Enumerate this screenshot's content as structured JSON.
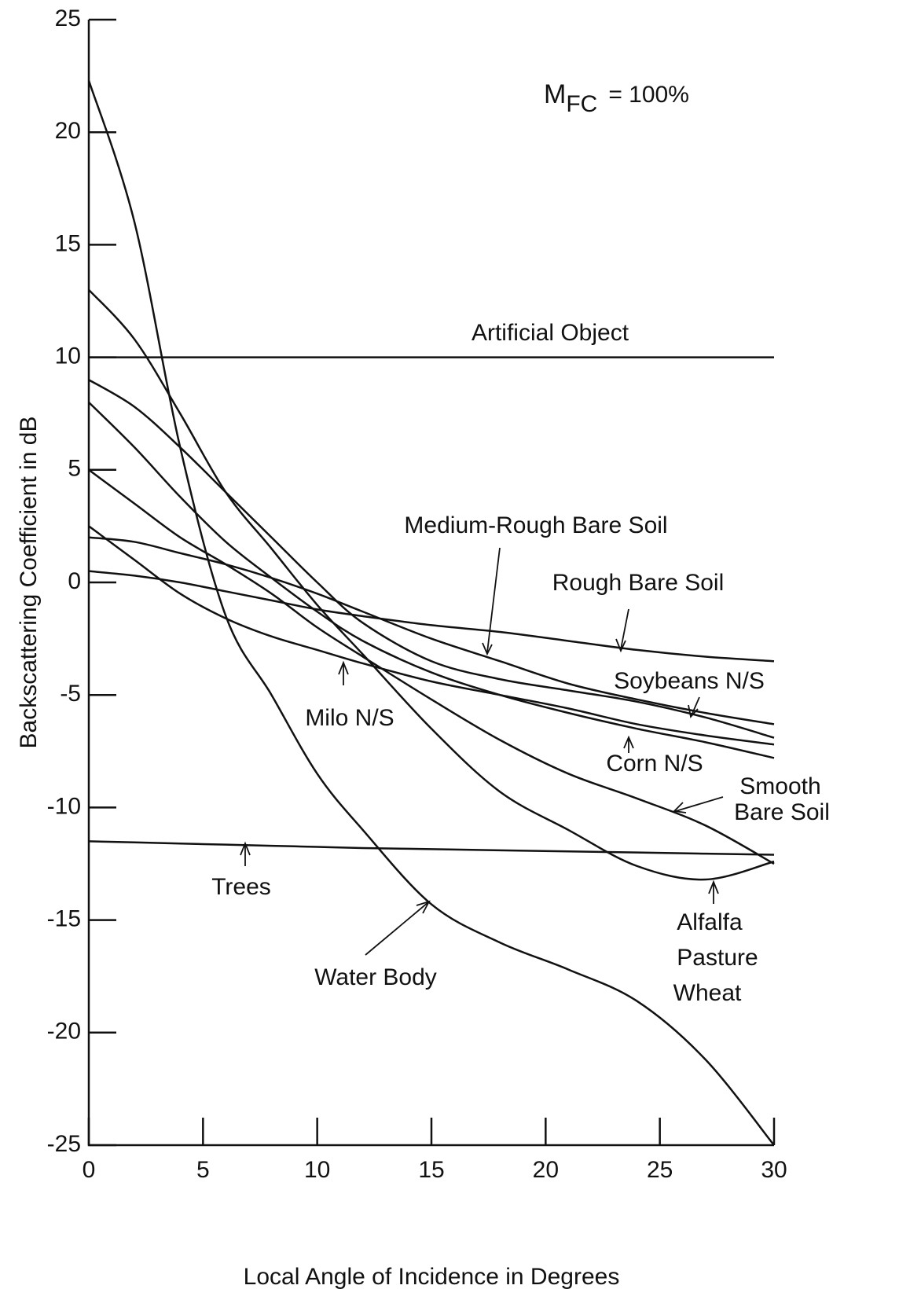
{
  "chart_data": {
    "type": "line",
    "x_label": "Local Angle of Incidence in Degrees",
    "y_label": "Backscattering Coefficient in dB",
    "header": {
      "symbol": "M",
      "subscript": "FC",
      "text": "= 100%"
    },
    "x": [
      0,
      2,
      4,
      6,
      8,
      10,
      12,
      15,
      18,
      21,
      24,
      27,
      30
    ],
    "series": [
      {
        "color": "#111111",
        "values": [
          10,
          10,
          10,
          10,
          10,
          10,
          10,
          10,
          10,
          10,
          10,
          10,
          10
        ]
      },
      {
        "color": "#111111",
        "values": [
          22.3,
          16,
          6,
          -1.5,
          -5,
          -8.5,
          -11,
          -14.3,
          -16,
          -17.2,
          -18.6,
          -21.2,
          -25
        ]
      },
      {
        "color": "#111111",
        "values": [
          13,
          10.8,
          7.5,
          4,
          1.5,
          -1,
          -3.2,
          -6.5,
          -9.3,
          -11,
          -12.6,
          -13.2,
          -12.4
        ]
      },
      {
        "color": "#111111",
        "values": [
          9,
          7.8,
          6,
          4,
          2,
          0,
          -1.8,
          -3.5,
          -4.3,
          -4.8,
          -5.3,
          -6,
          -6.9
        ]
      },
      {
        "color": "#111111",
        "values": [
          8,
          6,
          3.8,
          1.8,
          0.2,
          -1.3,
          -2.6,
          -4,
          -5,
          -5.8,
          -6.5,
          -7.1,
          -7.8
        ]
      },
      {
        "color": "#111111",
        "values": [
          5,
          3.5,
          2,
          0.8,
          -0.5,
          -2,
          -3.3,
          -5.2,
          -7,
          -8.5,
          -9.6,
          -10.8,
          -12.5
        ]
      },
      {
        "color": "#111111",
        "values": [
          2.5,
          1,
          -0.5,
          -1.6,
          -2.4,
          -3,
          -3.6,
          -4.4,
          -5,
          -5.6,
          -6.3,
          -6.8,
          -7.2
        ]
      },
      {
        "color": "#111111",
        "values": [
          2,
          1.8,
          1.3,
          0.8,
          0.2,
          -0.5,
          -1.3,
          -2.5,
          -3.5,
          -4.5,
          -5.2,
          -5.8,
          -6.3
        ]
      },
      {
        "color": "#111111",
        "values": [
          0.5,
          0.3,
          0,
          -0.4,
          -0.8,
          -1.2,
          -1.5,
          -1.9,
          -2.2,
          -2.6,
          -3,
          -3.3,
          -3.5
        ]
      },
      {
        "color": "#111111",
        "values": [
          -11.5,
          -11.55,
          -11.6,
          -11.65,
          -11.7,
          -11.75,
          -11.8,
          -11.85,
          -11.9,
          -11.95,
          -12,
          -12.05,
          -12.1
        ]
      }
    ],
    "annotations": [
      "Artificial Object",
      "Medium-Rough Bare Soil",
      "Rough Bare Soil",
      "Soybeans N/S",
      "Milo N/S",
      "Corn N/S",
      "Smooth",
      "Bare Soil",
      "Trees",
      "Alfalfa",
      "Pasture",
      "Wheat",
      "Water Body"
    ],
    "xlim": [
      0,
      30
    ],
    "ylim": [
      -25,
      25
    ],
    "xticks": [
      0,
      5,
      10,
      15,
      20,
      25,
      30
    ],
    "yticks": [
      -25,
      -20,
      -15,
      -10,
      -5,
      0,
      5,
      10,
      15,
      20,
      25
    ]
  }
}
